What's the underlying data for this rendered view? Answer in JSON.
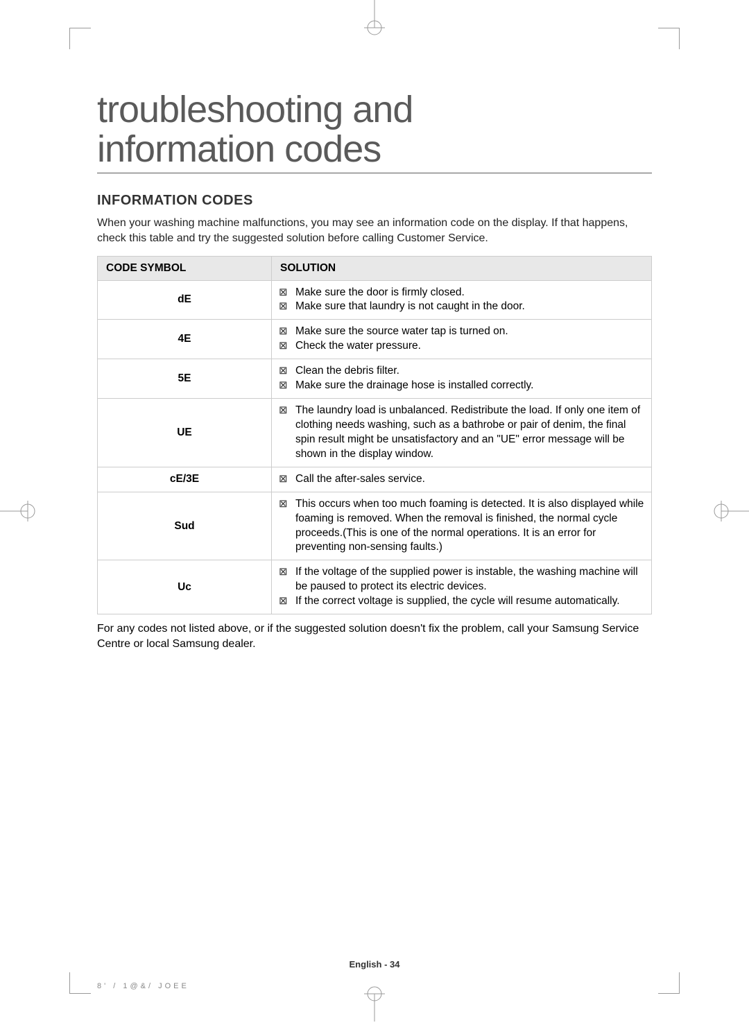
{
  "title_line1": "troubleshooting and",
  "title_line2": "information codes",
  "section_heading": "INFORMATION CODES",
  "intro": "When your washing machine malfunctions, you may see an information code on the display. If that happens, check this table and try the suggested solution before calling Customer Service.",
  "table": {
    "header_code": "CODE SYMBOL",
    "header_solution": "SOLUTION",
    "rows": [
      {
        "code": "dE",
        "solutions": [
          "Make sure the door is firmly closed.",
          "Make sure that laundry is not caught in the door."
        ]
      },
      {
        "code": "4E",
        "solutions": [
          "Make sure the source water tap is turned on.",
          "Check the water pressure."
        ]
      },
      {
        "code": "5E",
        "solutions": [
          "Clean the debris filter.",
          "Make sure the drainage hose is installed correctly."
        ]
      },
      {
        "code": "UE",
        "solutions": [
          "The laundry load is unbalanced. Redistribute the load. If only one item of clothing needs washing, such as a bathrobe or pair of denim, the final spin result might be unsatisfactory and an \"UE\" error message will be shown in the display window."
        ]
      },
      {
        "code": "cE/3E",
        "solutions": [
          "Call the after-sales service."
        ]
      },
      {
        "code": "Sud",
        "solutions": [
          "This occurs when too much foaming is detected. It is also displayed while foaming is removed. When the removal is finished, the normal cycle proceeds.(This is one of the normal operations. It is an error for preventing non-sensing faults.)"
        ]
      },
      {
        "code": "Uc",
        "solutions": [
          "If the voltage of the supplied power is instable, the washing machine will be paused to protect its electric devices.",
          "If the correct voltage is supplied, the cycle will resume automatically."
        ]
      }
    ]
  },
  "footnote": "For any codes not listed above, or if the suggested solution doesn't fix the problem, call your Samsung Service Centre or local Samsung dealer.",
  "footer_center": "English - 34",
  "footer_left": "8'   /   1@&/ JOEE"
}
